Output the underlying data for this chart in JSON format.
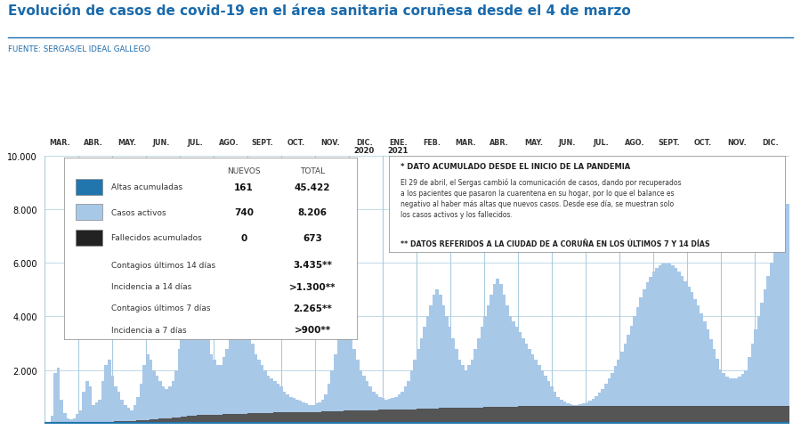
{
  "title": "Evolución de casos de covid-19 en el área sanitaria coruñesa desde el 4 de marzo",
  "source": "FUENTE: SERGAS/EL IDEAL GALLEGO",
  "title_color": "#1a6aab",
  "source_color": "#1a6aab",
  "background_color": "#ffffff",
  "grid_color": "#aaccdd",
  "months": [
    "MAR.",
    "ABR.",
    "MAY.",
    "JUN.",
    "JUL.",
    "AGO.",
    "SEPT.",
    "OCT.",
    "NOV.",
    "DIC.",
    "ENE.",
    "FEB.",
    "MAR.",
    "ABR.",
    "MAY.",
    "JUN.",
    "JUL.",
    "AGO.",
    "SEPT.",
    "OCT.",
    "NOV.",
    "DIC."
  ],
  "ylim": [
    0,
    10000
  ],
  "yticks": [
    2000,
    4000,
    6000,
    8000,
    10000
  ],
  "active_cases_color": "#a8c8e8",
  "recovered_color": "#2176ae",
  "deceased_color": "#555555",
  "active_cases": [
    20,
    60,
    300,
    1900,
    2100,
    900,
    400,
    200,
    150,
    200,
    350,
    500,
    1200,
    1600,
    1400,
    700,
    800,
    900,
    1600,
    2200,
    2400,
    1800,
    1400,
    1200,
    900,
    700,
    600,
    500,
    700,
    1000,
    1500,
    2200,
    2600,
    2400,
    2000,
    1800,
    1600,
    1400,
    1300,
    1400,
    1600,
    2000,
    2800,
    3800,
    4800,
    6200,
    6800,
    6500,
    5800,
    4800,
    4000,
    3200,
    2600,
    2400,
    2200,
    2200,
    2500,
    2800,
    3200,
    3800,
    4200,
    4400,
    4200,
    3800,
    3400,
    3000,
    2600,
    2400,
    2200,
    2000,
    1800,
    1700,
    1600,
    1500,
    1400,
    1200,
    1100,
    1000,
    950,
    900,
    850,
    800,
    750,
    700,
    700,
    750,
    800,
    900,
    1100,
    1500,
    2000,
    2600,
    3200,
    3600,
    3800,
    3600,
    3200,
    2800,
    2400,
    2000,
    1800,
    1600,
    1400,
    1200,
    1100,
    1000,
    950,
    900,
    920,
    960,
    1000,
    1100,
    1200,
    1400,
    1600,
    2000,
    2400,
    2800,
    3200,
    3600,
    4000,
    4400,
    4800,
    5000,
    4800,
    4400,
    4000,
    3600,
    3200,
    2800,
    2400,
    2200,
    2000,
    2200,
    2400,
    2800,
    3200,
    3600,
    4000,
    4400,
    4800,
    5200,
    5400,
    5200,
    4800,
    4400,
    4000,
    3800,
    3600,
    3400,
    3200,
    3000,
    2800,
    2600,
    2400,
    2200,
    2000,
    1800,
    1600,
    1400,
    1200,
    1000,
    900,
    820,
    760,
    720,
    700,
    700,
    720,
    760,
    800,
    860,
    940,
    1040,
    1160,
    1300,
    1480,
    1680,
    1900,
    2140,
    2400,
    2700,
    3000,
    3320,
    3660,
    4000,
    4360,
    4700,
    5000,
    5260,
    5480,
    5660,
    5800,
    5900,
    5960,
    5980,
    5960,
    5900,
    5800,
    5660,
    5500,
    5320,
    5120,
    4900,
    4660,
    4400,
    4120,
    3820,
    3500,
    3160,
    2800,
    2420,
    2020,
    1880,
    1760,
    1700,
    1680,
    1700,
    1760,
    1860,
    2000,
    2500,
    3000,
    3500,
    4000,
    4500,
    5000,
    5500,
    6000,
    6500,
    7000,
    7500,
    8000,
    8200
  ],
  "deceased": [
    0,
    0,
    2,
    8,
    18,
    22,
    24,
    25,
    26,
    27,
    28,
    30,
    32,
    35,
    40,
    45,
    50,
    55,
    60,
    65,
    70,
    75,
    80,
    85,
    90,
    95,
    100,
    105,
    110,
    115,
    120,
    130,
    140,
    150,
    160,
    170,
    180,
    190,
    200,
    210,
    220,
    230,
    240,
    255,
    270,
    285,
    300,
    310,
    320,
    325,
    330,
    335,
    338,
    340,
    342,
    344,
    346,
    348,
    350,
    355,
    360,
    365,
    370,
    375,
    380,
    385,
    390,
    395,
    400,
    405,
    408,
    410,
    412,
    414,
    416,
    418,
    420,
    422,
    424,
    426,
    428,
    430,
    432,
    434,
    436,
    438,
    440,
    445,
    450,
    455,
    460,
    465,
    470,
    475,
    480,
    485,
    490,
    495,
    498,
    500,
    502,
    504,
    506,
    508,
    510,
    512,
    514,
    516,
    518,
    520,
    522,
    524,
    526,
    528,
    530,
    535,
    540,
    545,
    550,
    555,
    560,
    565,
    570,
    575,
    578,
    580,
    582,
    584,
    586,
    588,
    590,
    592,
    594,
    596,
    598,
    602,
    606,
    610,
    614,
    618,
    622,
    626,
    630,
    634,
    636,
    638,
    640,
    642,
    644,
    646,
    648,
    650,
    652,
    654,
    656,
    658,
    660,
    661,
    662,
    663,
    664,
    665,
    666,
    667,
    668,
    669,
    670,
    670,
    671,
    671,
    671,
    671,
    672,
    672,
    672,
    672,
    672,
    672,
    673,
    673,
    673,
    673,
    673,
    673,
    673,
    673,
    673,
    673,
    673,
    673,
    673,
    673,
    673,
    673,
    673,
    673,
    673,
    673,
    673,
    673,
    673,
    673,
    673,
    673,
    673,
    673,
    673,
    673,
    673,
    673,
    673,
    673,
    673,
    673,
    673,
    673,
    673,
    673,
    673,
    673,
    673,
    673,
    673,
    673,
    673,
    673,
    673,
    673,
    673,
    673,
    673,
    673,
    673,
    673
  ],
  "legend_rows": [
    {
      "color": "#2176ae",
      "label": "Altas acumuladas",
      "nuevos": "161",
      "total": "45.422"
    },
    {
      "color": "#a8c8e8",
      "label": "Casos activos",
      "nuevos": "740",
      "total": "8.206"
    },
    {
      "color": "#222222",
      "label": "Fallecidos acumulados",
      "nuevos": "0",
      "total": "673"
    }
  ],
  "legend_extra": [
    {
      "label": "Contagios últimos 14 días",
      "value": "3.435**"
    },
    {
      "label": "Incidencia a 14 días",
      "value": ">1.300**"
    },
    {
      "label": "Contagios últimos 7 días",
      "value": "2.265**"
    },
    {
      "label": "Incidencia a 7 días",
      "value": ">900**"
    }
  ],
  "ann_title": "* DATO ACUMULADO DESDE EL INICIO DE LA PANDEMIA",
  "ann_line1": "El 29 de abril, el Sergas cambió la comunicación de casos, dando por recuperados",
  "ann_line2": "a los pacientes que pasaron la cuarentena en su hogar, por lo que el balance es",
  "ann_line3": "negativo al haber más altas que nuevos casos. Desde ese día, se muestran solo",
  "ann_line4": "los casos activos y los fallecidos.",
  "ann_line5": "** DATOS REFERIDOS A LA CIUDAD DE A CORUÑA EN LOS ÚLTIMOS 7 Y 14 DÍAS"
}
